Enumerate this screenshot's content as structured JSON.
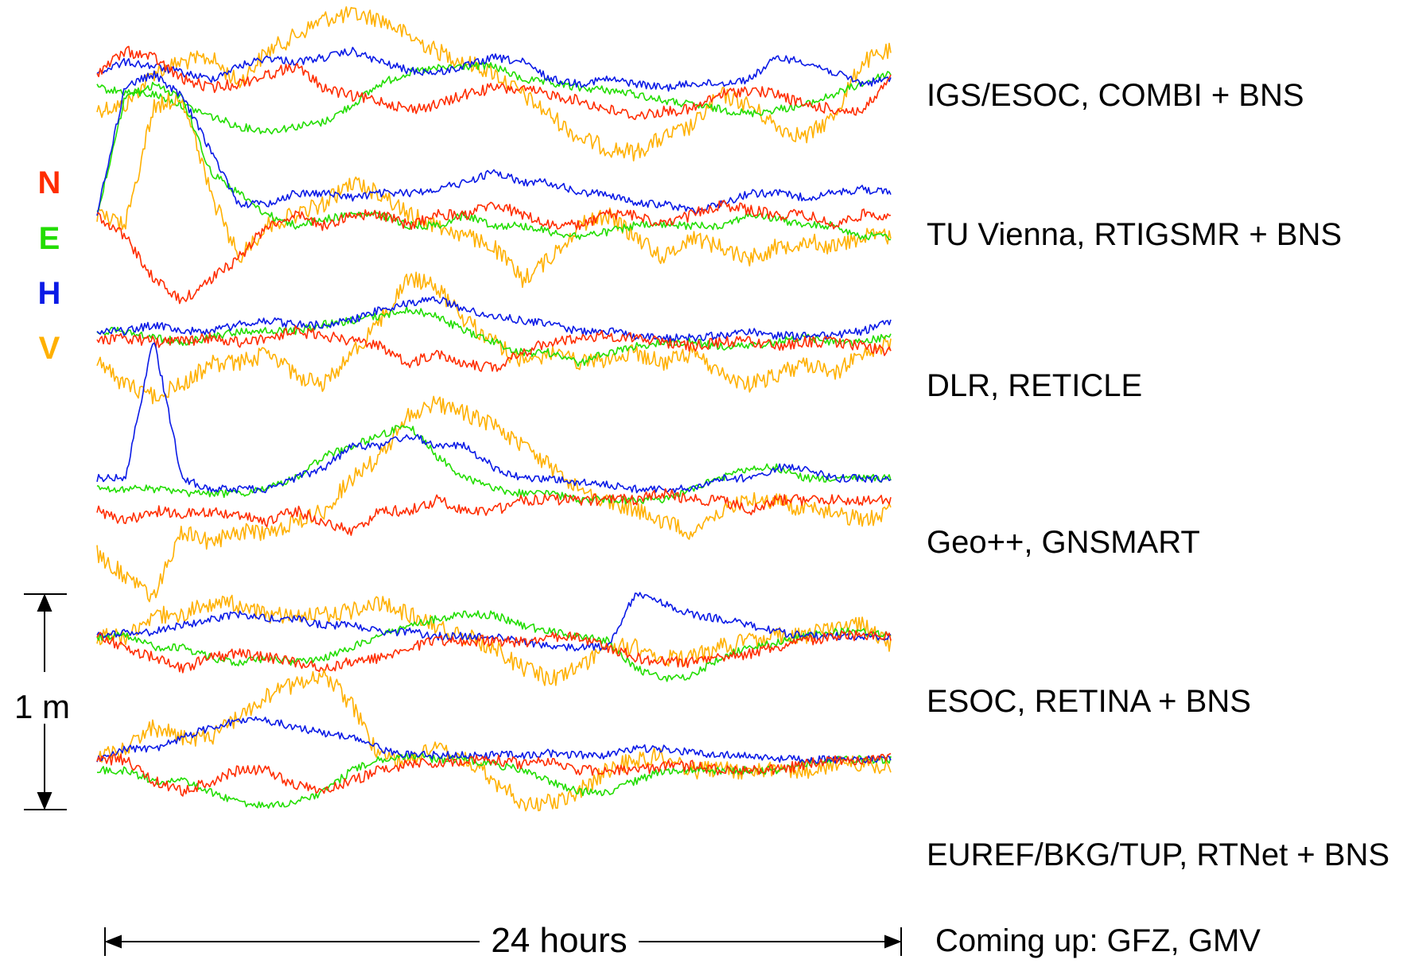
{
  "chart_data": {
    "type": "line",
    "legend": [
      {
        "key": "N",
        "color": "#ff2d00"
      },
      {
        "key": "E",
        "color": "#22dd00"
      },
      {
        "key": "H",
        "color": "#0a1ae6"
      },
      {
        "key": "V",
        "color": "#ffb000"
      }
    ],
    "scale_label": "1 m",
    "time_label": "24 hours",
    "footnote": "Coming up: GFZ, GMV",
    "panels": [
      {
        "label": "IGS/ESOC, COMBI + BNS",
        "series": {
          "N": [
            0.05,
            0.15,
            0.12,
            0.02,
            -0.02,
            0.0,
            0.04,
            0.08,
            -0.02,
            -0.06,
            -0.08,
            -0.12,
            -0.1,
            -0.05,
            -0.02,
            -0.03,
            -0.05,
            -0.08,
            -0.12,
            -0.15,
            -0.13,
            -0.12,
            -0.05,
            -0.03,
            -0.05,
            -0.1,
            -0.12,
            -0.13,
            0.02
          ],
          "E": [
            -0.02,
            -0.04,
            -0.05,
            -0.1,
            -0.15,
            -0.2,
            -0.22,
            -0.2,
            -0.18,
            -0.1,
            0.0,
            0.05,
            0.07,
            0.08,
            0.08,
            0.02,
            0.0,
            -0.02,
            -0.03,
            -0.05,
            -0.08,
            -0.1,
            -0.12,
            -0.14,
            -0.12,
            -0.1,
            -0.05,
            0.0,
            0.05
          ],
          "H": [
            0.05,
            0.1,
            0.08,
            0.05,
            0.02,
            0.08,
            0.12,
            0.1,
            0.12,
            0.15,
            0.1,
            0.06,
            0.05,
            0.08,
            0.12,
            0.1,
            0.02,
            0.0,
            0.02,
            0.0,
            -0.02,
            0.0,
            0.0,
            0.02,
            0.12,
            0.1,
            0.05,
            0.0,
            0.02
          ],
          "V": [
            -0.12,
            -0.1,
            0.05,
            0.1,
            0.12,
            0.0,
            0.15,
            0.22,
            0.3,
            0.32,
            0.3,
            0.22,
            0.15,
            0.1,
            0.05,
            -0.05,
            -0.15,
            -0.25,
            -0.3,
            -0.32,
            -0.25,
            -0.2,
            -0.05,
            -0.1,
            -0.2,
            -0.25,
            -0.15,
            0.1,
            0.15
          ]
        }
      },
      {
        "label": "TU Vienna, RTIGSMR + BNS",
        "series": {
          "N": [
            0.0,
            -0.1,
            -0.3,
            -0.4,
            -0.3,
            -0.2,
            -0.05,
            0.0,
            -0.05,
            0.0,
            0.0,
            -0.05,
            0.0,
            0.0,
            0.05,
            0.0,
            -0.05,
            -0.05,
            0.0,
            0.0,
            -0.05,
            0.0,
            0.05,
            0.02,
            0.0,
            0.0,
            -0.05,
            0.0,
            0.0
          ],
          "E": [
            0.0,
            0.55,
            0.6,
            0.55,
            0.2,
            0.1,
            0.0,
            -0.05,
            -0.02,
            0.0,
            0.0,
            -0.05,
            -0.05,
            0.0,
            -0.05,
            -0.05,
            -0.08,
            -0.1,
            -0.08,
            -0.05,
            -0.05,
            -0.05,
            -0.05,
            0.0,
            -0.02,
            -0.05,
            -0.05,
            -0.1,
            -0.1
          ],
          "H": [
            0.0,
            0.6,
            0.65,
            0.55,
            0.3,
            0.05,
            0.05,
            0.1,
            0.1,
            0.08,
            0.1,
            0.1,
            0.12,
            0.15,
            0.2,
            0.15,
            0.15,
            0.1,
            0.1,
            0.05,
            0.05,
            0.02,
            0.05,
            0.1,
            0.1,
            0.08,
            0.1,
            0.12,
            0.1
          ],
          "V": [
            0.0,
            -0.05,
            0.5,
            0.55,
            0.1,
            -0.2,
            -0.05,
            0.0,
            0.05,
            0.15,
            0.1,
            0.0,
            -0.05,
            -0.1,
            -0.15,
            -0.3,
            -0.2,
            -0.05,
            0.0,
            -0.1,
            -0.2,
            -0.1,
            -0.15,
            -0.2,
            -0.15,
            -0.12,
            -0.15,
            -0.1,
            -0.1
          ]
        }
      },
      {
        "label": "DLR, RETICLE",
        "series": {
          "N": [
            0.0,
            0.02,
            0.0,
            0.0,
            0.02,
            0.0,
            0.02,
            0.05,
            0.03,
            0.0,
            -0.02,
            -0.1,
            -0.05,
            -0.1,
            -0.12,
            -0.05,
            0.0,
            0.02,
            0.03,
            0.02,
            0.0,
            -0.02,
            0.0,
            0.0,
            -0.02,
            0.0,
            0.0,
            -0.02,
            -0.05
          ],
          "E": [
            0.05,
            0.05,
            0.02,
            0.0,
            0.02,
            0.05,
            0.05,
            0.05,
            0.08,
            0.1,
            0.12,
            0.15,
            0.12,
            0.05,
            0.0,
            -0.05,
            -0.05,
            -0.1,
            -0.05,
            -0.02,
            0.0,
            0.0,
            -0.02,
            -0.02,
            0.0,
            0.02,
            0.0,
            0.0,
            0.03
          ],
          "H": [
            0.05,
            0.05,
            0.08,
            0.05,
            0.05,
            0.08,
            0.1,
            0.08,
            0.08,
            0.1,
            0.15,
            0.18,
            0.2,
            0.15,
            0.12,
            0.1,
            0.08,
            0.05,
            0.05,
            0.03,
            0.02,
            0.02,
            0.03,
            0.05,
            0.03,
            0.03,
            0.03,
            0.05,
            0.1
          ],
          "V": [
            -0.1,
            -0.2,
            -0.25,
            -0.2,
            -0.1,
            -0.1,
            -0.05,
            -0.15,
            -0.2,
            -0.05,
            0.1,
            0.3,
            0.25,
            0.1,
            0.0,
            -0.1,
            -0.05,
            -0.1,
            -0.08,
            -0.05,
            -0.1,
            -0.05,
            -0.15,
            -0.2,
            -0.15,
            -0.1,
            -0.15,
            -0.05,
            0.0
          ]
        }
      },
      {
        "label": "Geo++, GNSMART",
        "series": {
          "N": [
            -0.1,
            -0.15,
            -0.1,
            -0.12,
            -0.1,
            -0.12,
            -0.15,
            -0.1,
            -0.15,
            -0.2,
            -0.1,
            -0.1,
            -0.05,
            -0.1,
            -0.1,
            -0.05,
            -0.05,
            -0.05,
            -0.05,
            -0.05,
            -0.02,
            -0.05,
            -0.05,
            -0.1,
            -0.05,
            -0.05,
            -0.05,
            -0.05,
            -0.05
          ],
          "E": [
            0.0,
            0.0,
            0.0,
            -0.02,
            -0.02,
            -0.02,
            0.0,
            0.05,
            0.15,
            0.2,
            0.25,
            0.3,
            0.15,
            0.05,
            0.0,
            -0.02,
            -0.02,
            -0.05,
            -0.05,
            -0.05,
            -0.05,
            0.0,
            0.05,
            0.1,
            0.1,
            0.05,
            0.05,
            0.05,
            0.05
          ],
          "H": [
            0.05,
            0.05,
            0.7,
            0.05,
            0.0,
            0.0,
            0.0,
            0.05,
            0.1,
            0.2,
            0.2,
            0.25,
            0.2,
            0.2,
            0.1,
            0.05,
            0.05,
            0.03,
            0.02,
            0.0,
            0.0,
            0.0,
            0.05,
            0.05,
            0.1,
            0.1,
            0.05,
            0.05,
            0.05
          ],
          "V": [
            -0.3,
            -0.4,
            -0.5,
            -0.2,
            -0.25,
            -0.2,
            -0.2,
            -0.15,
            -0.1,
            0.05,
            0.15,
            0.35,
            0.4,
            0.35,
            0.3,
            0.2,
            0.1,
            0.0,
            -0.05,
            -0.1,
            -0.15,
            -0.2,
            -0.1,
            -0.05,
            -0.05,
            -0.1,
            -0.1,
            -0.15,
            -0.1
          ]
        }
      },
      {
        "label": "ESOC, RETINA + BNS",
        "series": {
          "N": [
            0.0,
            -0.05,
            -0.1,
            -0.15,
            -0.1,
            -0.08,
            -0.1,
            -0.12,
            -0.15,
            -0.12,
            -0.1,
            -0.05,
            -0.02,
            -0.02,
            -0.02,
            -0.03,
            0.0,
            0.0,
            -0.05,
            -0.1,
            -0.12,
            -0.12,
            -0.1,
            -0.08,
            -0.05,
            -0.02,
            0.0,
            0.0,
            0.0
          ],
          "E": [
            0.0,
            0.0,
            -0.05,
            -0.05,
            -0.1,
            -0.12,
            -0.1,
            -0.12,
            -0.1,
            -0.05,
            0.0,
            0.05,
            0.08,
            0.1,
            0.1,
            0.05,
            0.02,
            0.0,
            -0.02,
            -0.15,
            -0.2,
            -0.18,
            -0.1,
            -0.05,
            -0.03,
            0.0,
            0.02,
            0.02,
            0.0
          ],
          "H": [
            0.0,
            0.02,
            0.02,
            0.05,
            0.08,
            0.1,
            0.08,
            0.08,
            0.05,
            0.05,
            0.02,
            0.02,
            0.0,
            0.0,
            0.0,
            -0.02,
            -0.05,
            -0.05,
            -0.05,
            0.2,
            0.15,
            0.1,
            0.08,
            0.05,
            0.02,
            0.0,
            0.0,
            0.0,
            0.0
          ],
          "V": [
            0.0,
            0.0,
            0.1,
            0.1,
            0.15,
            0.15,
            0.1,
            0.1,
            0.1,
            0.12,
            0.15,
            0.1,
            0.05,
            0.0,
            -0.05,
            -0.15,
            -0.2,
            -0.15,
            -0.05,
            -0.05,
            -0.1,
            -0.1,
            -0.05,
            -0.02,
            0.0,
            0.0,
            0.05,
            0.05,
            -0.05
          ]
        }
      },
      {
        "label": "EUREF/BKG/TUP, RTNet + BNS",
        "series": {
          "N": [
            0.0,
            0.0,
            -0.1,
            -0.15,
            -0.1,
            -0.05,
            -0.05,
            -0.12,
            -0.15,
            -0.1,
            -0.05,
            -0.02,
            -0.02,
            0.0,
            0.0,
            -0.02,
            0.0,
            -0.05,
            -0.05,
            -0.05,
            -0.03,
            -0.03,
            -0.05,
            -0.05,
            -0.05,
            -0.02,
            0.0,
            0.0,
            0.02
          ],
          "E": [
            -0.05,
            -0.05,
            -0.1,
            -0.1,
            -0.15,
            -0.2,
            -0.22,
            -0.2,
            -0.15,
            -0.05,
            0.0,
            0.02,
            0.0,
            0.0,
            -0.02,
            -0.05,
            -0.1,
            -0.15,
            -0.15,
            -0.1,
            -0.05,
            -0.05,
            -0.05,
            -0.05,
            -0.05,
            -0.02,
            0.0,
            0.0,
            0.0
          ],
          "H": [
            0.0,
            0.05,
            0.05,
            0.1,
            0.15,
            0.18,
            0.18,
            0.15,
            0.12,
            0.1,
            0.05,
            0.02,
            0.02,
            0.02,
            0.02,
            0.02,
            0.03,
            0.02,
            0.02,
            0.05,
            0.05,
            0.03,
            0.02,
            0.02,
            0.0,
            0.0,
            0.0,
            0.0,
            0.0
          ],
          "V": [
            0.0,
            0.05,
            0.15,
            0.1,
            0.1,
            0.2,
            0.3,
            0.35,
            0.4,
            0.25,
            0.0,
            0.0,
            0.05,
            0.0,
            -0.1,
            -0.2,
            -0.2,
            -0.15,
            -0.05,
            0.0,
            0.02,
            -0.05,
            -0.05,
            -0.05,
            -0.05,
            -0.05,
            -0.02,
            -0.02,
            -0.05
          ]
        }
      }
    ]
  }
}
